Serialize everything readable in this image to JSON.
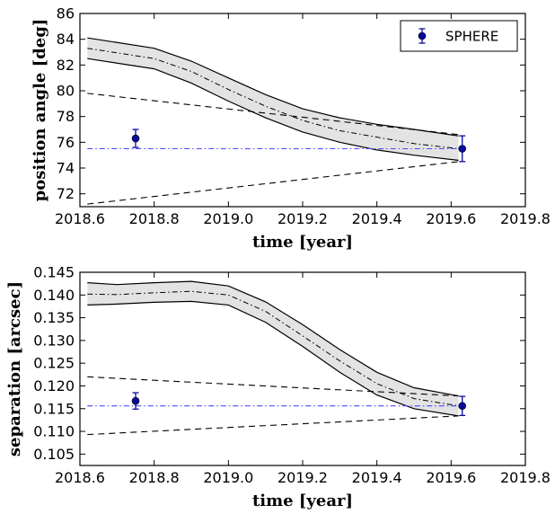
{
  "chart_data": [
    {
      "type": "line",
      "xlabel": "time [year]",
      "ylabel": "position angle [deg]",
      "xlim": [
        2018.6,
        2019.8
      ],
      "ylim": [
        71.0,
        86.0
      ],
      "xticks": [
        "2018.6",
        "2018.8",
        "2019.0",
        "2019.2",
        "2019.4",
        "2019.6",
        "2019.8"
      ],
      "yticks": [
        "72",
        "74",
        "76",
        "78",
        "80",
        "82",
        "84",
        "86"
      ],
      "grid": false,
      "legend": {
        "position": "top-right",
        "entries": [
          "SPHERE"
        ]
      },
      "band": {
        "x": [
          2018.62,
          2018.8,
          2018.9,
          2019.0,
          2019.1,
          2019.2,
          2019.3,
          2019.4,
          2019.5,
          2019.62
        ],
        "upper": [
          84.1,
          83.3,
          82.3,
          81.0,
          79.7,
          78.6,
          77.9,
          77.4,
          77.0,
          76.5
        ],
        "mid": [
          83.3,
          82.5,
          81.5,
          80.1,
          78.8,
          77.7,
          76.9,
          76.4,
          75.9,
          75.5
        ],
        "lower": [
          82.5,
          81.7,
          80.6,
          79.2,
          77.9,
          76.8,
          76.0,
          75.4,
          75.0,
          74.6
        ]
      },
      "dashed_upper": {
        "x": [
          2018.62,
          2019.62
        ],
        "y": [
          79.8,
          76.6
        ]
      },
      "dashed_lower": {
        "x": [
          2018.62,
          2019.62
        ],
        "y": [
          71.2,
          74.5
        ]
      },
      "reference_line": {
        "x": [
          2018.62,
          2019.62
        ],
        "y": 75.5
      },
      "series": [
        {
          "name": "SPHERE",
          "x": [
            2018.75,
            2019.63
          ],
          "y": [
            76.3,
            75.5
          ],
          "yerr": [
            0.7,
            1.0
          ]
        }
      ],
      "colors": {
        "band_fill": "#e3e3e3",
        "points": "#0a0a9e",
        "reference": "#4a4aff"
      }
    },
    {
      "type": "line",
      "xlabel": "time [year]",
      "ylabel": "separation [arcsec]",
      "xlim": [
        2018.6,
        2019.8
      ],
      "ylim": [
        0.1025,
        0.145
      ],
      "xticks": [
        "2018.6",
        "2018.8",
        "2019.0",
        "2019.2",
        "2019.4",
        "2019.6",
        "2019.8"
      ],
      "yticks": [
        "0.105",
        "0.110",
        "0.115",
        "0.120",
        "0.125",
        "0.130",
        "0.135",
        "0.140",
        "0.145"
      ],
      "grid": false,
      "band": {
        "x": [
          2018.62,
          2018.7,
          2018.8,
          2018.9,
          2019.0,
          2019.1,
          2019.2,
          2019.3,
          2019.4,
          2019.5,
          2019.62
        ],
        "upper": [
          0.1427,
          0.1423,
          0.1427,
          0.143,
          0.142,
          0.1385,
          0.1335,
          0.128,
          0.123,
          0.1196,
          0.1178
        ],
        "mid": [
          0.1402,
          0.1401,
          0.1405,
          0.1408,
          0.14,
          0.1364,
          0.131,
          0.1255,
          0.1205,
          0.1172,
          0.1156
        ],
        "lower": [
          0.1378,
          0.138,
          0.1384,
          0.1386,
          0.1378,
          0.134,
          0.1287,
          0.123,
          0.118,
          0.115,
          0.1134
        ]
      },
      "dashed_upper": {
        "x": [
          2018.62,
          2019.62
        ],
        "y": [
          0.122,
          0.1178
        ]
      },
      "dashed_lower": {
        "x": [
          2018.62,
          2019.62
        ],
        "y": [
          0.1093,
          0.1134
        ]
      },
      "reference_line": {
        "x": [
          2018.62,
          2019.62
        ],
        "y": 0.1156
      },
      "series": [
        {
          "name": "SPHERE",
          "x": [
            2018.75,
            2019.63
          ],
          "y": [
            0.1167,
            0.1156
          ],
          "yerr": [
            0.0018,
            0.0021
          ]
        }
      ],
      "colors": {
        "band_fill": "#e3e3e3",
        "points": "#0a0a9e",
        "reference": "#4a4aff"
      }
    }
  ]
}
